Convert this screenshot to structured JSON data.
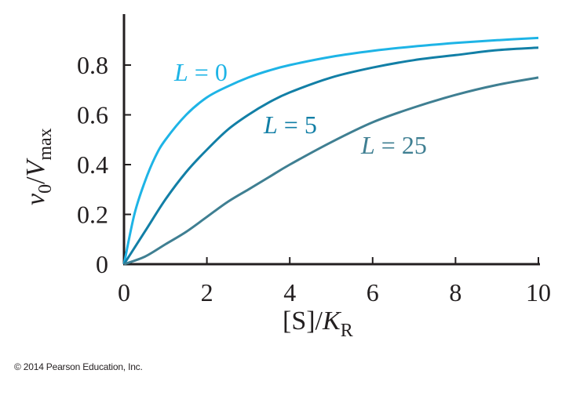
{
  "chart_data": {
    "type": "line",
    "x_axis": {
      "label_main": "[S]/",
      "label_italic": "K",
      "label_sub": "R",
      "range": [
        0,
        10
      ],
      "ticks": [
        0,
        2,
        4,
        6,
        8,
        10
      ],
      "tick_labels": [
        "0",
        "2",
        "4",
        "6",
        "8",
        "10"
      ]
    },
    "y_axis": {
      "label_italic_1": "v",
      "label_sub_1": "0",
      "label_slash": "/",
      "label_italic_2": "V",
      "label_sub_2": "max",
      "range": [
        0,
        0.95
      ],
      "ticks": [
        0,
        0.2,
        0.4,
        0.6,
        0.8
      ],
      "tick_labels": [
        "0",
        "0.2",
        "0.4",
        "0.6",
        "0.8"
      ]
    },
    "grid": false,
    "series": [
      {
        "name": "L = 0",
        "label_var": "L",
        "label_eq": " = 0",
        "color": "#1eb4e6",
        "x": [
          0,
          0.25,
          0.5,
          0.75,
          1,
          1.5,
          2,
          2.5,
          3,
          3.5,
          4,
          5,
          6,
          7,
          8,
          9,
          10
        ],
        "y": [
          0,
          0.2,
          0.33,
          0.43,
          0.5,
          0.6,
          0.67,
          0.714,
          0.75,
          0.778,
          0.8,
          0.833,
          0.857,
          0.875,
          0.889,
          0.9,
          0.909
        ]
      },
      {
        "name": "L = 5",
        "label_var": "L",
        "label_eq": " = 5",
        "color": "#127fa6",
        "x": [
          0,
          0.5,
          1,
          1.5,
          2,
          2.5,
          3,
          3.5,
          4,
          5,
          6,
          7,
          8,
          9,
          10
        ],
        "y": [
          0,
          0.13,
          0.26,
          0.37,
          0.46,
          0.54,
          0.6,
          0.65,
          0.69,
          0.75,
          0.79,
          0.82,
          0.84,
          0.86,
          0.87
        ]
      },
      {
        "name": "L = 25",
        "label_var": "L",
        "label_eq": " = 25",
        "color": "#3f7f92",
        "x": [
          0,
          0.5,
          1,
          1.5,
          2,
          2.5,
          3,
          3.5,
          4,
          5,
          6,
          7,
          8,
          9,
          10
        ],
        "y": [
          0,
          0.03,
          0.08,
          0.13,
          0.19,
          0.25,
          0.3,
          0.35,
          0.4,
          0.49,
          0.57,
          0.63,
          0.68,
          0.72,
          0.75
        ]
      }
    ]
  },
  "footer": {
    "copyright": "© 2014 Pearson Education, Inc."
  }
}
